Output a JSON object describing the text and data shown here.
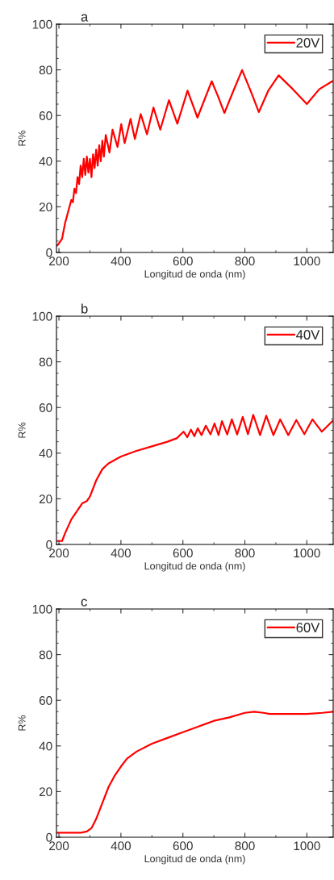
{
  "chart_data": [
    {
      "type": "line",
      "title": "a",
      "xlabel": "Longitud de onda (nm)",
      "ylabel": "R%",
      "xlim": [
        192,
        1085
      ],
      "xticks": [
        200,
        400,
        600,
        800,
        1000
      ],
      "ylim": [
        0,
        100
      ],
      "yticks": [
        0,
        20,
        40,
        60,
        80,
        100
      ],
      "legend": "top right",
      "series": [
        {
          "name": "20V",
          "color": "#ff0000",
          "x": [
            194,
            200,
            210,
            220,
            230,
            240,
            245,
            250,
            255,
            260,
            265,
            270,
            275,
            280,
            285,
            290,
            295,
            300,
            305,
            310,
            315,
            320,
            325,
            330,
            335,
            340,
            345,
            351,
            363,
            373,
            389,
            401,
            412,
            431,
            445,
            464,
            484,
            505,
            527,
            555,
            582,
            615,
            647,
            693,
            713,
            734,
            762,
            791,
            818,
            845,
            876,
            909,
            955,
            1000,
            1040,
            1082
          ],
          "values": [
            3,
            4,
            6,
            13,
            18,
            23,
            22,
            28,
            26,
            33,
            30,
            38,
            33,
            41,
            34,
            42,
            35,
            41,
            33,
            43,
            37,
            45,
            38,
            47,
            40,
            49,
            42,
            51.5,
            43.8,
            53.8,
            46.2,
            56.2,
            47.9,
            58.5,
            49.7,
            60.6,
            51.8,
            63.5,
            53.8,
            66.7,
            56.4,
            70.9,
            59.1,
            75,
            68.5,
            61.1,
            70.5,
            79.9,
            71,
            61.5,
            71,
            77.6,
            71.5,
            65,
            71.5,
            75
          ]
        }
      ]
    },
    {
      "type": "line",
      "title": "b",
      "xlabel": "Longitud de onda (nm)",
      "ylabel": "R%",
      "xlim": [
        192,
        1085
      ],
      "xticks": [
        200,
        400,
        600,
        800,
        1000
      ],
      "ylim": [
        0,
        100
      ],
      "yticks": [
        0,
        20,
        40,
        60,
        80,
        100
      ],
      "legend": "top right",
      "series": [
        {
          "name": "40V",
          "color": "#ff0000",
          "x": [
            194,
            210,
            220,
            240,
            260,
            275,
            290,
            300,
            320,
            340,
            360,
            380,
            400,
            450,
            500,
            550,
            580,
            602,
            614,
            626,
            637,
            648,
            660,
            674,
            689,
            702,
            715,
            726,
            743,
            758,
            775,
            793,
            810,
            827,
            849,
            869,
            892,
            914,
            940,
            966,
            992,
            1018,
            1048,
            1082
          ],
          "values": [
            1.5,
            1.5,
            5,
            11,
            15,
            18,
            19,
            21,
            28,
            33,
            35.5,
            37,
            38.5,
            41,
            43,
            45,
            46.5,
            49.4,
            47,
            50.3,
            47.4,
            50.9,
            47.9,
            52,
            48.2,
            53,
            47.9,
            54,
            48.2,
            54.8,
            48.2,
            55.9,
            48.3,
            56.8,
            47.9,
            56.4,
            47.9,
            54.8,
            47.9,
            54.5,
            48.3,
            54.8,
            49.4,
            54
          ]
        }
      ]
    },
    {
      "type": "line",
      "title": "c",
      "xlabel": "Longitud de onda (nm)",
      "ylabel": "R%",
      "xlim": [
        192,
        1085
      ],
      "xticks": [
        200,
        400,
        600,
        800,
        1000
      ],
      "ylim": [
        0,
        100
      ],
      "yticks": [
        0,
        20,
        40,
        60,
        80,
        100
      ],
      "legend": "top right",
      "series": [
        {
          "name": "60V",
          "color": "#ff0000",
          "x": [
            194,
            270,
            290,
            305,
            320,
            340,
            360,
            380,
            400,
            420,
            450,
            500,
            550,
            600,
            650,
            700,
            750,
            800,
            830,
            860,
            880,
            950,
            1000,
            1050,
            1085
          ],
          "values": [
            2,
            2,
            2.5,
            4,
            8,
            15,
            22,
            27,
            31,
            34.5,
            37.5,
            41,
            43.5,
            46,
            48.5,
            51,
            52.5,
            54.5,
            55,
            54.5,
            54,
            54,
            54,
            54.5,
            55
          ]
        }
      ]
    }
  ]
}
